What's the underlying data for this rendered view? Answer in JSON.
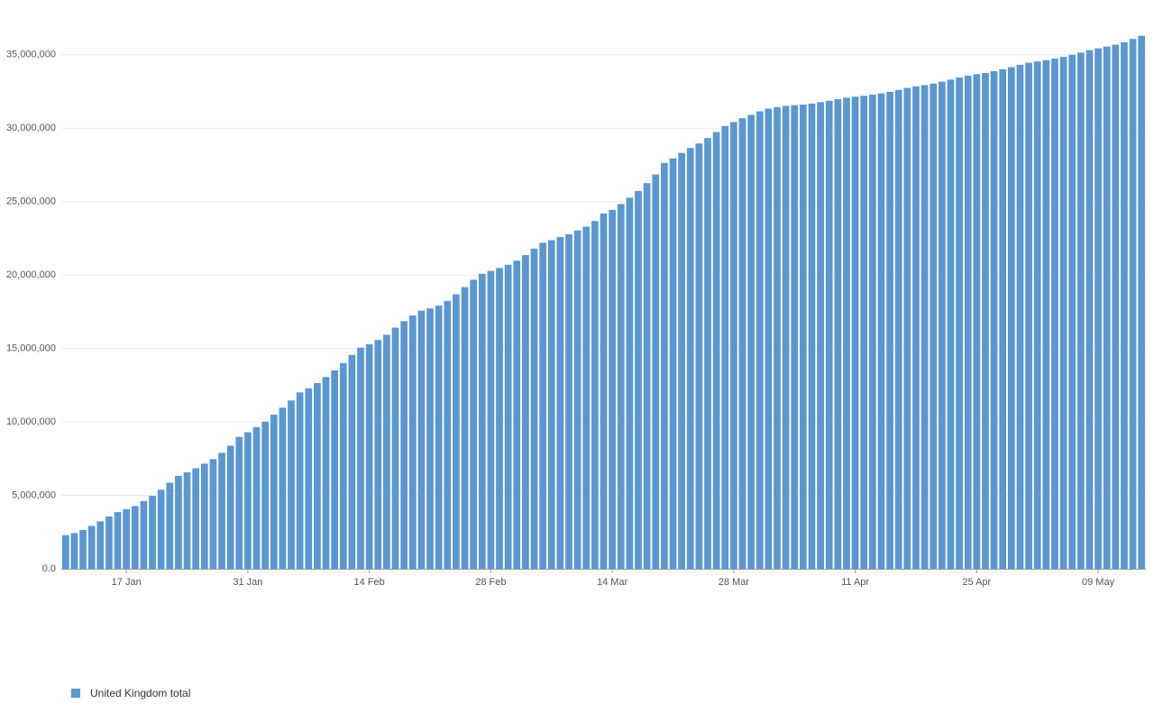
{
  "chart_data": {
    "type": "bar",
    "categories": [
      null,
      null,
      null,
      null,
      null,
      null,
      null,
      "17 Jan",
      null,
      null,
      null,
      null,
      null,
      null,
      null,
      null,
      null,
      null,
      null,
      null,
      null,
      "31 Jan",
      null,
      null,
      null,
      null,
      null,
      null,
      null,
      null,
      null,
      null,
      null,
      null,
      null,
      "14 Feb",
      null,
      null,
      null,
      null,
      null,
      null,
      null,
      null,
      null,
      null,
      null,
      null,
      null,
      "28 Feb",
      null,
      null,
      null,
      null,
      null,
      null,
      null,
      null,
      null,
      null,
      null,
      null,
      null,
      "14 Mar",
      null,
      null,
      null,
      null,
      null,
      null,
      null,
      null,
      null,
      null,
      null,
      null,
      null,
      "28 Mar",
      null,
      null,
      null,
      null,
      null,
      null,
      null,
      null,
      null,
      null,
      null,
      null,
      null,
      "11 Apr",
      null,
      null,
      null,
      null,
      null,
      null,
      null,
      null,
      null,
      null,
      null,
      null,
      null,
      "25 Apr",
      null,
      null,
      null,
      null,
      null,
      null,
      null,
      null,
      null,
      null,
      null,
      null,
      null,
      "09 May",
      null,
      null,
      null,
      null,
      null
    ],
    "series": [
      {
        "name": "United Kingdom total",
        "color": "#5b97d1",
        "values": [
          2290000,
          2430000,
          2640000,
          2920000,
          3230000,
          3560000,
          3860000,
          4060000,
          4270000,
          4610000,
          4970000,
          5380000,
          5860000,
          6330000,
          6570000,
          6850000,
          7160000,
          7470000,
          7890000,
          8380000,
          8980000,
          9300000,
          9650000,
          10020000,
          10500000,
          10970000,
          11460000,
          12010000,
          12290000,
          12650000,
          13060000,
          13510000,
          14010000,
          14560000,
          15060000,
          15300000,
          15580000,
          15940000,
          16420000,
          16860000,
          17250000,
          17580000,
          17730000,
          17920000,
          18240000,
          18690000,
          19180000,
          19680000,
          20090000,
          20280000,
          20480000,
          20700000,
          20980000,
          21360000,
          21800000,
          22200000,
          22380000,
          22590000,
          22780000,
          23040000,
          23300000,
          23680000,
          24200000,
          24440000,
          24840000,
          25270000,
          25730000,
          26260000,
          26850000,
          27630000,
          27950000,
          28320000,
          28650000,
          28960000,
          29330000,
          29740000,
          30150000,
          30420000,
          30680000,
          30910000,
          31150000,
          31340000,
          31440000,
          31520000,
          31570000,
          31610000,
          31680000,
          31780000,
          31870000,
          31980000,
          32080000,
          32150000,
          32210000,
          32290000,
          32380000,
          32480000,
          32610000,
          32750000,
          32850000,
          32940000,
          33040000,
          33170000,
          33310000,
          33450000,
          33580000,
          33680000,
          33760000,
          33880000,
          34020000,
          34160000,
          34320000,
          34460000,
          34550000,
          34640000,
          34740000,
          34860000,
          35000000,
          35150000,
          35320000,
          35440000,
          35560000,
          35690000,
          35860000,
          36080000,
          36300000
        ]
      }
    ],
    "ylim": [
      0,
      36400000
    ],
    "yticks": [
      {
        "value": 0,
        "label": "0.0"
      },
      {
        "value": 5000000,
        "label": "5,000,000"
      },
      {
        "value": 10000000,
        "label": "10,000,000"
      },
      {
        "value": 15000000,
        "label": "15,000,000"
      },
      {
        "value": 20000000,
        "label": "20,000,000"
      },
      {
        "value": 25000000,
        "label": "25,000,000"
      },
      {
        "value": 30000000,
        "label": "30,000,000"
      },
      {
        "value": 35000000,
        "label": "35,000,000"
      }
    ],
    "grid": true,
    "legend": "bottom-left"
  }
}
